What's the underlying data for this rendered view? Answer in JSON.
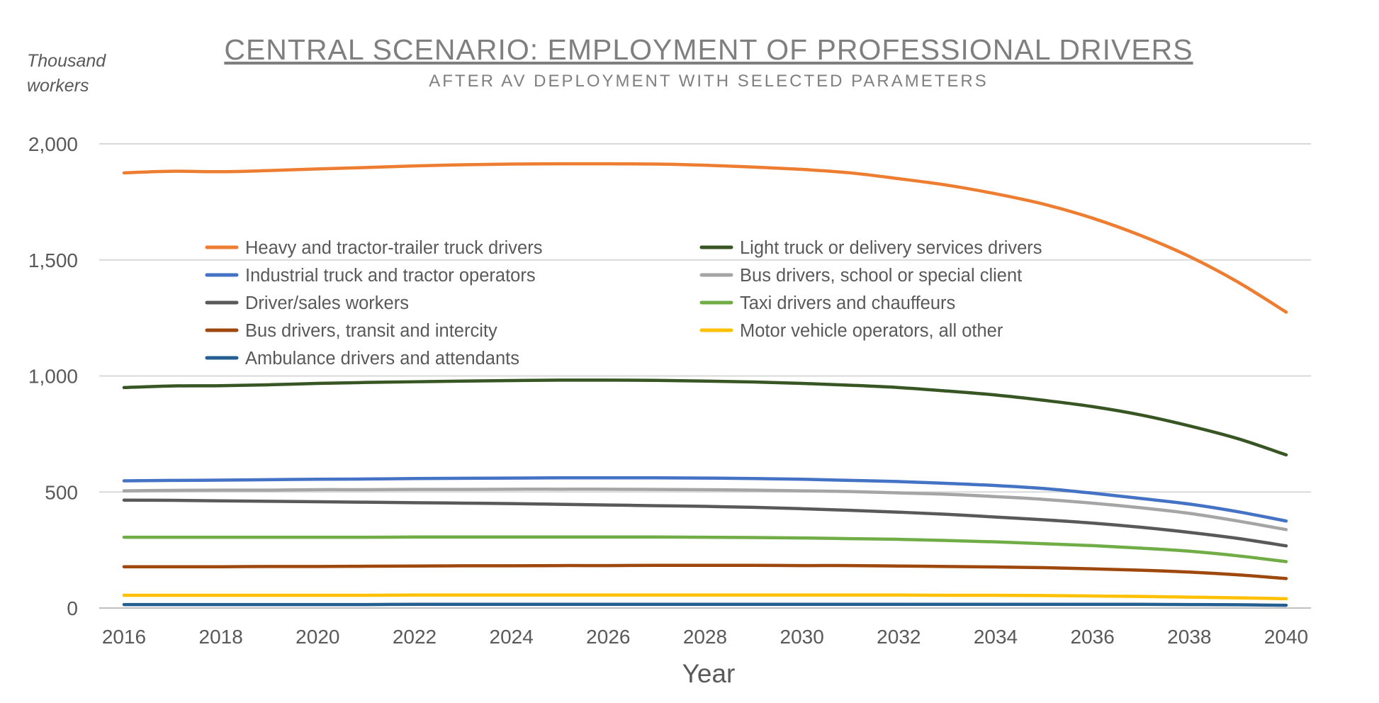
{
  "chart_data": {
    "type": "line",
    "title": "CENTRAL SCENARIO: EMPLOYMENT OF PROFESSIONAL DRIVERS",
    "subtitle": "AFTER AV DEPLOYMENT WITH SELECTED PARAMETERS",
    "y_unit_label": [
      "Thousand",
      "workers"
    ],
    "xlabel": "Year",
    "ylabel": "",
    "x": [
      2016,
      2017,
      2018,
      2019,
      2020,
      2021,
      2022,
      2023,
      2024,
      2025,
      2026,
      2027,
      2028,
      2029,
      2030,
      2031,
      2032,
      2033,
      2034,
      2035,
      2036,
      2037,
      2038,
      2039,
      2040
    ],
    "x_ticks": [
      "2016",
      "2018",
      "2020",
      "2022",
      "2024",
      "2026",
      "2028",
      "2030",
      "2032",
      "2034",
      "2036",
      "2038",
      "2040"
    ],
    "y_ticks": [
      "0",
      "500",
      "1,000",
      "1,500",
      "2,000"
    ],
    "ylim": [
      0,
      2000
    ],
    "grid": true,
    "legend_position": "inside-top-left, two columns",
    "series": [
      {
        "name": "Heavy and tractor-trailer truck drivers",
        "color": "#ED7D31",
        "values": [
          1875,
          1882,
          1880,
          1885,
          1892,
          1898,
          1905,
          1910,
          1913,
          1914,
          1914,
          1913,
          1908,
          1900,
          1890,
          1875,
          1850,
          1822,
          1785,
          1740,
          1680,
          1605,
          1515,
          1405,
          1275
        ]
      },
      {
        "name": "Light truck or delivery services drivers",
        "color": "#375623",
        "values": [
          950,
          957,
          958,
          962,
          968,
          972,
          975,
          978,
          980,
          982,
          982,
          981,
          978,
          974,
          968,
          960,
          950,
          935,
          918,
          895,
          868,
          832,
          785,
          730,
          660
        ]
      },
      {
        "name": "Industrial truck and tractor operators",
        "color": "#4472C4",
        "values": [
          548,
          550,
          551,
          553,
          555,
          556,
          558,
          559,
          560,
          561,
          561,
          561,
          560,
          558,
          555,
          550,
          545,
          537,
          528,
          515,
          495,
          472,
          448,
          415,
          375
        ]
      },
      {
        "name": "Bus drivers, school or special client",
        "color": "#A5A5A5",
        "values": [
          505,
          507,
          508,
          508,
          510,
          510,
          511,
          511,
          512,
          512,
          512,
          511,
          510,
          508,
          505,
          502,
          496,
          490,
          480,
          468,
          452,
          432,
          408,
          375,
          338
        ]
      },
      {
        "name": "Driver/sales workers",
        "color": "#595959",
        "values": [
          465,
          464,
          462,
          460,
          458,
          456,
          454,
          452,
          450,
          447,
          444,
          441,
          438,
          434,
          428,
          421,
          413,
          404,
          392,
          380,
          366,
          348,
          326,
          300,
          268
        ]
      },
      {
        "name": "Taxi drivers and chauffeurs",
        "color": "#70AD47",
        "values": [
          305,
          305,
          305,
          305,
          305,
          305,
          306,
          306,
          306,
          306,
          306,
          306,
          305,
          304,
          302,
          299,
          296,
          291,
          285,
          277,
          269,
          258,
          245,
          225,
          200
        ]
      },
      {
        "name": "Bus drivers, transit and intercity",
        "color": "#9E480E",
        "values": [
          178,
          178,
          178,
          179,
          179,
          180,
          181,
          182,
          182,
          183,
          183,
          184,
          184,
          184,
          183,
          183,
          181,
          179,
          177,
          174,
          169,
          163,
          155,
          143,
          127
        ]
      },
      {
        "name": "Motor vehicle operators, all other",
        "color": "#FFC000",
        "values": [
          55,
          55,
          55,
          55,
          55,
          55,
          56,
          56,
          56,
          56,
          56,
          56,
          56,
          56,
          56,
          56,
          56,
          55,
          55,
          54,
          52,
          50,
          47,
          44,
          40
        ]
      },
      {
        "name": "Ambulance drivers and attendants",
        "color": "#255E91",
        "values": [
          15,
          15,
          15,
          15,
          15,
          15,
          16,
          16,
          16,
          16,
          16,
          16,
          16,
          16,
          16,
          16,
          16,
          16,
          16,
          16,
          16,
          16,
          15,
          14,
          12
        ]
      }
    ]
  }
}
